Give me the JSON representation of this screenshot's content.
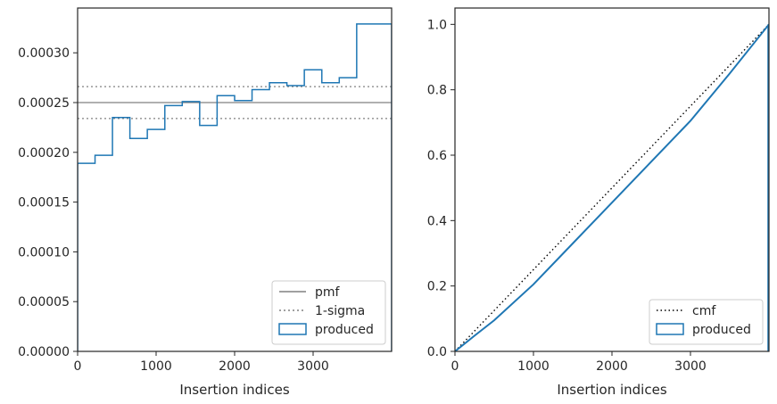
{
  "chart_data": [
    {
      "type": "line",
      "title": "",
      "xlabel": "Insertion indices",
      "ylabel": "",
      "xlim": [
        0,
        4000
      ],
      "ylim": [
        0,
        0.000345
      ],
      "xticks": [
        0,
        1000,
        2000,
        3000
      ],
      "xtick_labels": [
        "0",
        "1000",
        "2000",
        "3000"
      ],
      "yticks": [
        0,
        5e-05,
        0.0001,
        0.00015,
        0.0002,
        0.00025,
        0.0003
      ],
      "ytick_labels": [
        "0.00000",
        "0.00005",
        "0.00010",
        "0.00015",
        "0.00020",
        "0.00025",
        "0.00030"
      ],
      "grid": false,
      "legend_position": "lower right",
      "series": [
        {
          "name": "pmf",
          "style": "solid",
          "color": "#808080",
          "y": 0.00025
        },
        {
          "name": "1-sigma",
          "style": "dotted",
          "color": "#808080",
          "y_values": [
            0.000266,
            0.000234
          ]
        },
        {
          "name": "produced",
          "style": "step-histogram",
          "color": "#1f77b4",
          "bin_edges": [
            0,
            222,
            444,
            666,
            888,
            1111,
            1333,
            1555,
            1777,
            2000,
            2222,
            2444,
            2666,
            2888,
            3111,
            3333,
            3555,
            3777,
            4000
          ],
          "values": [
            0.000189,
            0.000197,
            0.000235,
            0.000214,
            0.000223,
            0.000247,
            0.000251,
            0.000227,
            0.000257,
            0.000252,
            0.000263,
            0.00027,
            0.000267,
            0.000283,
            0.00027,
            0.000275,
            0.000329,
            0.000329
          ]
        }
      ]
    },
    {
      "type": "line",
      "title": "",
      "xlabel": "Insertion indices",
      "ylabel": "",
      "xlim": [
        0,
        4000
      ],
      "ylim": [
        0,
        1.05
      ],
      "xticks": [
        0,
        1000,
        2000,
        3000
      ],
      "xtick_labels": [
        "0",
        "1000",
        "2000",
        "3000"
      ],
      "yticks": [
        0,
        0.2,
        0.4,
        0.6,
        0.8,
        1.0
      ],
      "ytick_labels": [
        "0.0",
        "0.2",
        "0.4",
        "0.6",
        "0.8",
        "1.0"
      ],
      "grid": false,
      "legend_position": "lower right",
      "series": [
        {
          "name": "cmf",
          "style": "dotted",
          "color": "#000000",
          "x": [
            0,
            4000
          ],
          "y": [
            0,
            1.0
          ]
        },
        {
          "name": "produced",
          "style": "solid",
          "color": "#1f77b4",
          "x": [
            0,
            250,
            500,
            1000,
            1500,
            2000,
            2500,
            3000,
            3500,
            4000
          ],
          "y": [
            0,
            0.048,
            0.095,
            0.205,
            0.33,
            0.455,
            0.58,
            0.705,
            0.85,
            1.0
          ]
        }
      ]
    }
  ]
}
